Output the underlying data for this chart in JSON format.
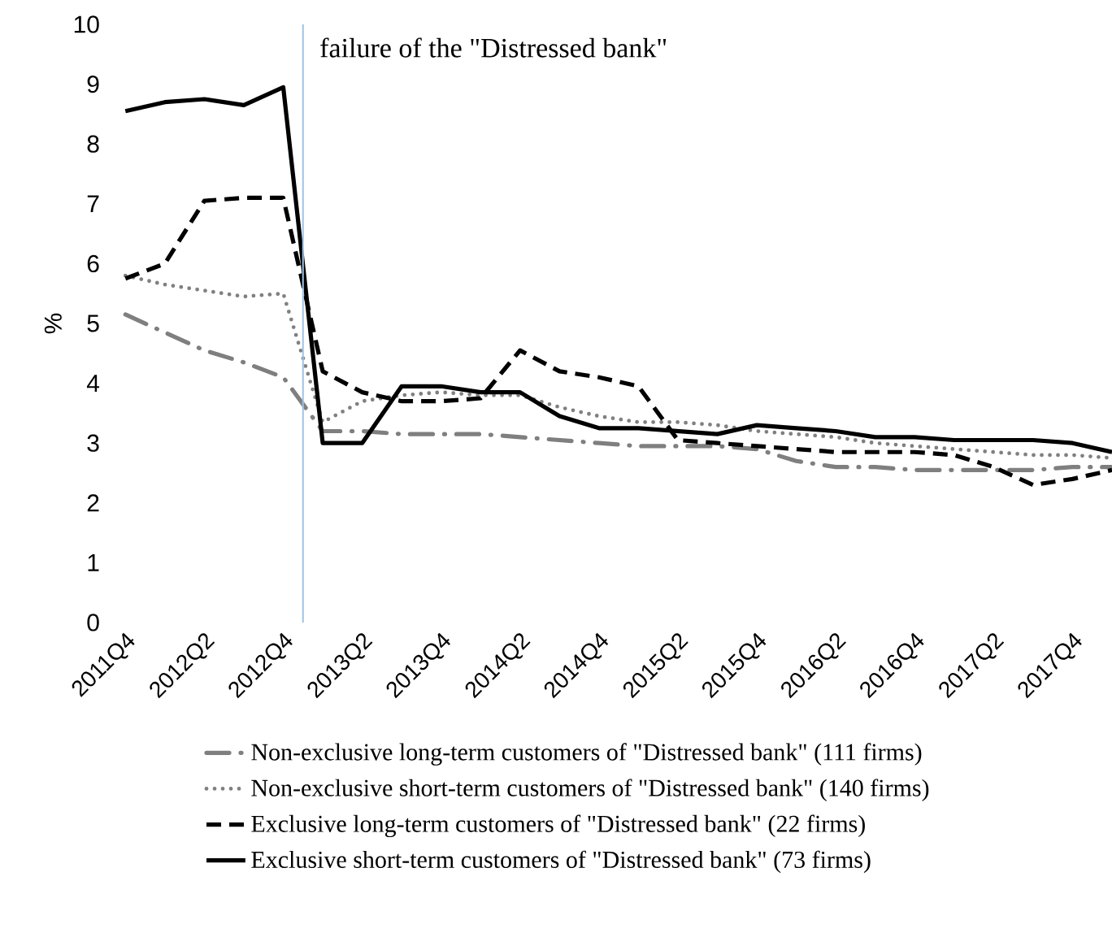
{
  "chart_data": {
    "type": "line",
    "ylabel": "%",
    "categories": [
      "2011Q4",
      null,
      "2012Q2",
      null,
      "2012Q4",
      null,
      "2013Q2",
      null,
      "2013Q4",
      null,
      "2014Q2",
      null,
      "2014Q4",
      null,
      "2015Q2",
      null,
      "2015Q4",
      null,
      "2016Q2",
      null,
      "2016Q4",
      null,
      "2017Q2",
      null,
      "2017Q4",
      null
    ],
    "series": [
      {
        "name": "Non-exclusive long-term customers of \"Distressed bank\" (111 firms)",
        "color": "#7f7f7f",
        "line_style": "dash-dot",
        "values": [
          5.15,
          4.85,
          4.55,
          4.35,
          4.1,
          3.2,
          3.2,
          3.15,
          3.15,
          3.15,
          3.1,
          3.05,
          3.0,
          2.95,
          2.95,
          2.95,
          2.9,
          2.7,
          2.6,
          2.6,
          2.55,
          2.55,
          2.55,
          2.55,
          2.6,
          2.6
        ]
      },
      {
        "name": "Non-exclusive short-term customers of \"Distressed bank\" (140 firms)",
        "color": "#808080",
        "line_style": "dotted",
        "values": [
          5.8,
          5.65,
          5.55,
          5.45,
          5.5,
          3.35,
          3.7,
          3.8,
          3.85,
          3.8,
          3.8,
          3.6,
          3.45,
          3.35,
          3.35,
          3.3,
          3.2,
          3.15,
          3.1,
          3.0,
          2.95,
          2.9,
          2.85,
          2.8,
          2.8,
          2.75
        ]
      },
      {
        "name": "Exclusive long-term customers of \"Distressed bank\" (22 firms)",
        "color": "#000000",
        "line_style": "dashed",
        "values": [
          5.75,
          6.0,
          7.05,
          7.1,
          7.1,
          4.2,
          3.85,
          3.7,
          3.7,
          3.75,
          4.55,
          4.2,
          4.1,
          3.95,
          3.05,
          3.0,
          2.95,
          2.9,
          2.85,
          2.85,
          2.85,
          2.8,
          2.6,
          2.3,
          2.4,
          2.55
        ]
      },
      {
        "name": "Exclusive short-term customers of \"Distressed bank\" (73 firms)",
        "color": "#000000",
        "line_style": "solid",
        "values": [
          8.55,
          8.7,
          8.75,
          8.65,
          8.95,
          3.0,
          3.0,
          3.95,
          3.95,
          3.85,
          3.85,
          3.45,
          3.25,
          3.25,
          3.2,
          3.15,
          3.3,
          3.25,
          3.2,
          3.1,
          3.1,
          3.05,
          3.05,
          3.05,
          3.0,
          2.85
        ]
      }
    ],
    "ylim": [
      0,
      10
    ],
    "yticks": [
      0,
      1,
      2,
      3,
      4,
      5,
      6,
      7,
      8,
      9,
      10
    ],
    "annotations": [
      "failure of the \"Distressed bank\""
    ],
    "legend": "bottom",
    "marker": "none"
  }
}
